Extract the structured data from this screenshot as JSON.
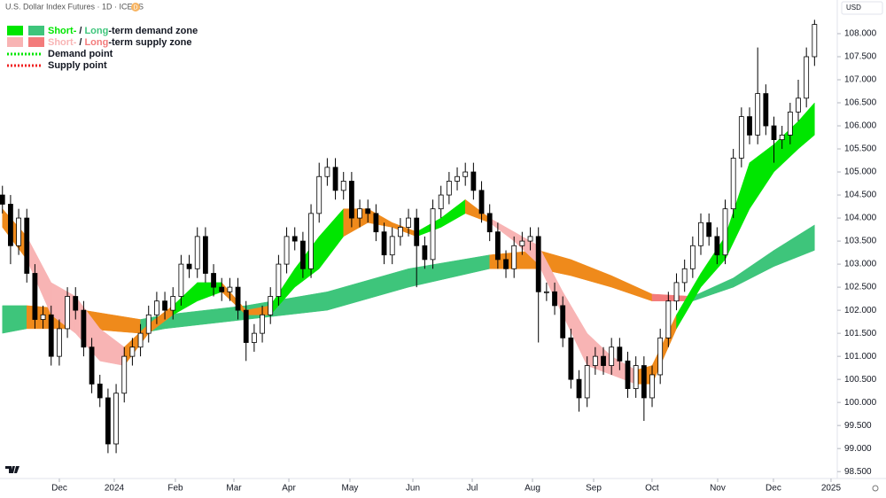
{
  "chart_data": {
    "type": "candlestick",
    "title": "U.S. Dollar Index Futures · 1D · ICEUS",
    "badge": "D",
    "currency": "USD",
    "up_color": "#ffffff",
    "down_color": "#000000",
    "xlim": [
      -0.3,
      102.8
    ],
    "xticks": [
      {
        "value": 7.01,
        "label": "Dec"
      },
      {
        "value": 13.77,
        "label": "2024"
      },
      {
        "value": 21.3,
        "label": "Feb"
      },
      {
        "value": 28.5,
        "label": "Mar"
      },
      {
        "value": 35.27,
        "label": "Apr"
      },
      {
        "value": 42.79,
        "label": "May"
      },
      {
        "value": 50.54,
        "label": "Jun"
      },
      {
        "value": 57.85,
        "label": "Jul"
      },
      {
        "value": 65.27,
        "label": "Aug"
      },
      {
        "value": 72.8,
        "label": "Sep"
      },
      {
        "value": 79.99,
        "label": "Oct"
      },
      {
        "value": 88.07,
        "label": "Nov"
      },
      {
        "value": 94.94,
        "label": "Dec"
      },
      {
        "value": 102.03,
        "label": "2025"
      }
    ],
    "ylim": [
      98.35,
      108.73
    ],
    "yticks": [
      {
        "value": 98.5,
        "label": "98.500"
      },
      {
        "value": 99,
        "label": "99.000"
      },
      {
        "value": 99.5,
        "label": "99.500"
      },
      {
        "value": 100,
        "label": "100.000"
      },
      {
        "value": 100.5,
        "label": "100.500"
      },
      {
        "value": 101,
        "label": "101.000"
      },
      {
        "value": 101.5,
        "label": "101.500"
      },
      {
        "value": 102,
        "label": "102.000"
      },
      {
        "value": 102.5,
        "label": "102.500"
      },
      {
        "value": 103,
        "label": "103.000"
      },
      {
        "value": 103.5,
        "label": "103.500"
      },
      {
        "value": 104,
        "label": "104.000"
      },
      {
        "value": 104.5,
        "label": "104.500"
      },
      {
        "value": 105,
        "label": "105.000"
      },
      {
        "value": 105.5,
        "label": "105.500"
      },
      {
        "value": 106,
        "label": "106.000"
      },
      {
        "value": 106.5,
        "label": "106.500"
      },
      {
        "value": 107,
        "label": "107.000"
      },
      {
        "value": 107.5,
        "label": "107.500"
      },
      {
        "value": 108,
        "label": "108.000"
      }
    ],
    "open": [
      104.5,
      104.3,
      103.4,
      104.0,
      102.8,
      101.8,
      101.9,
      101.0,
      101.6,
      102.3,
      102.0,
      101.2,
      100.4,
      100.1,
      99.1,
      100.2,
      101.0,
      101.2,
      101.5,
      101.9,
      102.2,
      102.0,
      102.3,
      103.0,
      102.9,
      103.6,
      102.8,
      102.5,
      102.4,
      102.5,
      102.0,
      101.3,
      101.5,
      101.9,
      102.3,
      103.0,
      103.6,
      103.5,
      102.9,
      104.1,
      104.9,
      105.1,
      104.6,
      104.8,
      104.0,
      104.2,
      104.1,
      103.7,
      103.2,
      103.6,
      103.8,
      104.0,
      103.4,
      103.1,
      104.2,
      104.5,
      104.8,
      104.9,
      105.0,
      104.6,
      104.1,
      103.7,
      103.1,
      102.9,
      103.4,
      103.5,
      103.6,
      102.4,
      102.4,
      102.1,
      101.4,
      100.5,
      100.1,
      100.8,
      101.0,
      100.8,
      101.2,
      100.9,
      100.3,
      100.8,
      100.1,
      100.6,
      101.4,
      102.2,
      102.6,
      102.9,
      103.4,
      103.9,
      103.6,
      103.2,
      104.2,
      105.3,
      106.2,
      105.8,
      106.7,
      106.0,
      105.7,
      105.8,
      106.3,
      106.6,
      107.5
    ],
    "high": [
      104.7,
      104.5,
      104.2,
      104.2,
      103.0,
      102.1,
      102.1,
      101.8,
      102.5,
      102.5,
      102.2,
      101.4,
      100.6,
      100.3,
      100.4,
      101.2,
      101.4,
      101.7,
      102.1,
      102.4,
      102.4,
      102.5,
      103.2,
      103.2,
      103.8,
      103.8,
      103.0,
      102.7,
      102.7,
      102.7,
      102.2,
      101.7,
      102.1,
      102.5,
      103.2,
      103.8,
      103.8,
      103.7,
      104.3,
      105.2,
      105.3,
      105.3,
      105.0,
      105.0,
      104.4,
      104.4,
      104.3,
      103.9,
      103.8,
      104.0,
      104.2,
      104.2,
      103.6,
      104.4,
      104.7,
      105.0,
      105.1,
      105.2,
      105.2,
      104.8,
      104.3,
      103.9,
      103.3,
      103.6,
      103.7,
      103.8,
      103.8,
      102.6,
      102.6,
      102.3,
      101.6,
      100.7,
      101.0,
      101.2,
      101.2,
      101.4,
      101.4,
      101.1,
      101.0,
      101.0,
      100.8,
      101.6,
      102.4,
      102.8,
      103.1,
      103.6,
      104.1,
      104.1,
      103.8,
      104.4,
      105.5,
      106.4,
      106.4,
      107.7,
      106.9,
      106.2,
      106.0,
      106.5,
      107.0,
      107.7,
      108.3
    ],
    "low": [
      104.1,
      103.0,
      103.2,
      102.6,
      101.6,
      101.6,
      100.8,
      100.8,
      101.4,
      101.8,
      101.0,
      100.2,
      99.9,
      98.9,
      98.9,
      100.0,
      100.8,
      101.0,
      101.3,
      101.7,
      101.8,
      101.8,
      102.1,
      102.7,
      102.7,
      102.6,
      102.3,
      102.2,
      102.2,
      101.8,
      100.9,
      101.1,
      101.3,
      101.7,
      102.1,
      102.8,
      103.3,
      102.7,
      102.7,
      103.9,
      104.7,
      104.4,
      104.4,
      103.8,
      103.8,
      103.9,
      103.5,
      103.0,
      103.0,
      103.4,
      103.6,
      102.5,
      102.9,
      102.9,
      104.0,
      104.3,
      104.6,
      104.7,
      104.4,
      103.9,
      103.5,
      102.9,
      102.7,
      102.7,
      103.2,
      103.3,
      101.3,
      102.2,
      101.9,
      101.2,
      100.3,
      99.8,
      99.9,
      100.6,
      100.6,
      100.6,
      100.7,
      100.1,
      100.1,
      99.6,
      99.9,
      100.4,
      101.2,
      102.0,
      102.4,
      102.7,
      103.2,
      103.4,
      103.0,
      103.0,
      104.0,
      105.1,
      105.6,
      105.6,
      105.8,
      105.2,
      105.5,
      105.6,
      106.1,
      106.4,
      107.3
    ],
    "close": [
      104.3,
      103.4,
      104.0,
      102.8,
      101.8,
      101.9,
      101.0,
      101.6,
      102.3,
      102.0,
      101.2,
      100.4,
      100.1,
      99.1,
      100.2,
      101.0,
      101.2,
      101.5,
      101.9,
      102.2,
      102.0,
      102.3,
      103.0,
      102.9,
      103.6,
      102.8,
      102.5,
      102.4,
      102.5,
      102.0,
      101.3,
      101.5,
      101.9,
      102.3,
      103.0,
      103.6,
      103.5,
      102.9,
      104.1,
      104.9,
      105.1,
      104.6,
      104.8,
      104.0,
      104.2,
      104.1,
      103.7,
      103.2,
      103.6,
      103.8,
      104.0,
      103.4,
      103.1,
      104.2,
      104.5,
      104.8,
      104.9,
      105.0,
      104.6,
      104.1,
      103.7,
      103.1,
      102.9,
      103.4,
      103.5,
      103.6,
      102.4,
      102.4,
      102.1,
      101.4,
      100.5,
      100.1,
      100.8,
      101.0,
      100.8,
      101.2,
      100.9,
      100.3,
      100.8,
      100.1,
      100.6,
      101.4,
      102.2,
      102.6,
      102.9,
      103.4,
      103.9,
      103.6,
      103.2,
      104.2,
      105.3,
      106.2,
      105.8,
      106.7,
      106.0,
      105.7,
      105.8,
      106.3,
      106.6,
      107.5,
      108.2
    ],
    "zones": [
      {
        "index": [
          0,
          3,
          10,
          17,
          20,
          30,
          40,
          50,
          60,
          66,
          70,
          75,
          80,
          85,
          90,
          95,
          100
        ],
        "upper": [
          102.1,
          102.1,
          102.0,
          101.8,
          101.9,
          102.1,
          102.4,
          102.9,
          103.2,
          103.3,
          103.1,
          102.75,
          102.35,
          102.3,
          102.7,
          103.3,
          103.85
        ],
        "lower": [
          101.5,
          101.6,
          101.6,
          101.5,
          101.6,
          101.8,
          102.0,
          102.5,
          102.9,
          102.9,
          102.75,
          102.5,
          102.2,
          102.2,
          102.5,
          102.95,
          103.3
        ],
        "segment_colors": [
          "#3ec57b",
          "#ef8a1b",
          "#ef8a1b",
          "#3ec57b",
          "#3ec57b",
          "#3ec57b",
          "#3ec57b",
          "#3ec57b",
          "#ef8a1b",
          "#ef8a1b",
          "#ef8a1b",
          "#ef8a1b",
          "#f37b7b",
          "#3ec57b",
          "#3ec57b",
          "#3ec57b"
        ]
      },
      {
        "index": [
          0,
          3,
          6,
          9,
          12,
          15,
          18,
          21,
          24,
          27,
          30,
          33,
          36,
          39,
          42,
          45,
          48,
          51,
          54,
          57,
          60,
          63,
          66,
          69,
          72,
          75,
          78,
          80,
          83,
          86,
          89,
          92,
          95,
          98,
          100
        ],
        "upper": [
          104.2,
          103.6,
          102.6,
          102.3,
          101.6,
          101.2,
          101.7,
          102.1,
          102.6,
          102.6,
          102.0,
          102.1,
          102.9,
          103.6,
          104.2,
          104.2,
          103.9,
          103.7,
          104.0,
          104.4,
          104.0,
          103.7,
          103.4,
          102.4,
          101.5,
          101.0,
          100.7,
          100.8,
          101.9,
          102.8,
          103.6,
          105.2,
          105.6,
          106.1,
          106.5
        ],
        "lower": [
          103.8,
          103.1,
          101.9,
          101.5,
          100.9,
          100.8,
          101.5,
          101.9,
          102.2,
          102.4,
          101.9,
          101.9,
          102.5,
          102.9,
          103.6,
          103.9,
          103.8,
          103.6,
          103.8,
          104.1,
          103.9,
          103.5,
          103.0,
          101.9,
          100.8,
          100.6,
          100.4,
          100.4,
          101.6,
          102.5,
          103.1,
          104.2,
          105.0,
          105.5,
          105.8
        ],
        "segment_colors": [
          "#ef8a1b",
          "#f8b4b4",
          "#f8b4b4",
          "#f8b4b4",
          "#f8b4b4",
          "#ef8a1b",
          "#ef8a1b",
          "#00e600",
          "#00e600",
          "#ef8a1b",
          "#ef8a1b",
          "#00e600",
          "#00e600",
          "#00e600",
          "#ef8a1b",
          "#ef8a1b",
          "#ef8a1b",
          "#00e600",
          "#00e600",
          "#ef8a1b",
          "#f8b4b4",
          "#f8b4b4",
          "#f8b4b4",
          "#f8b4b4",
          "#f8b4b4",
          "#f8b4b4",
          "#ef8a1b",
          "#ef8a1b",
          "#00e600",
          "#00e600",
          "#00e600",
          "#00e600",
          "#00e600",
          "#00e600"
        ]
      }
    ],
    "legend": [
      {
        "swatches": [
          "#00e600",
          "#3ec57b"
        ],
        "parts": [
          {
            "text": "Short-",
            "color": "#00e600"
          },
          {
            "text": "/",
            "color": "#131722"
          },
          {
            "text": "Long",
            "color": "#3ec57b"
          },
          {
            "text": "-term demand zone",
            "color": "#131722"
          }
        ]
      },
      {
        "swatches": [
          "#f8b4b4",
          "#f37b7b"
        ],
        "parts": [
          {
            "text": "Short-",
            "color": "#f8b4b4"
          },
          {
            "text": "/",
            "color": "#131722"
          },
          {
            "text": "Long",
            "color": "#f37b7b"
          },
          {
            "text": "-term supply zone",
            "color": "#131722"
          }
        ]
      },
      {
        "line": "#00e600",
        "parts": [
          {
            "text": "Demand point",
            "color": "#131722"
          }
        ]
      },
      {
        "line": "#f02020",
        "parts": [
          {
            "text": "Supply point",
            "color": "#131722"
          }
        ]
      }
    ]
  }
}
